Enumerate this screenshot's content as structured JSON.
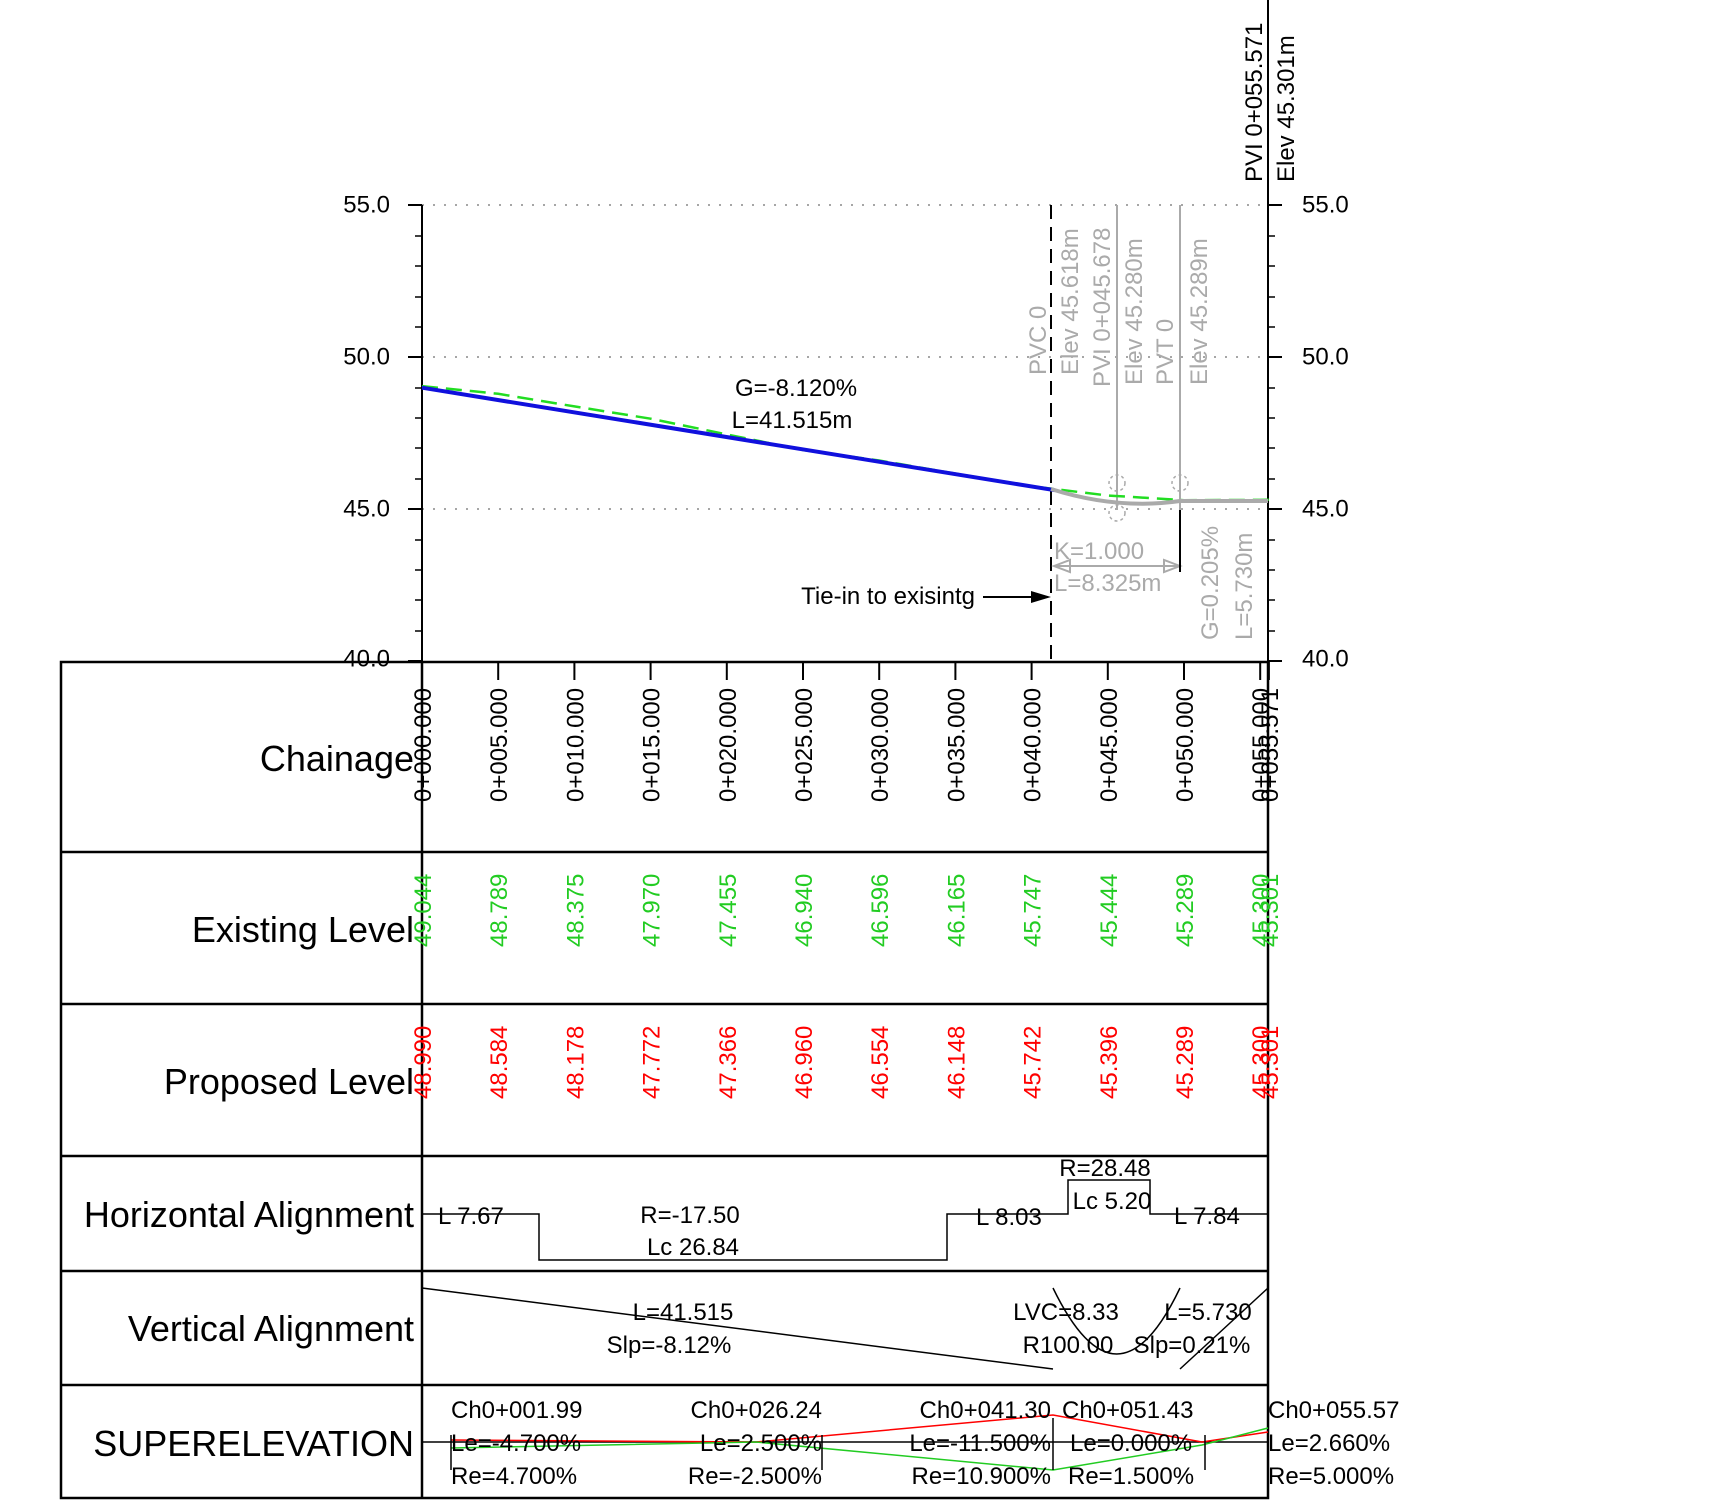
{
  "profile": {
    "y_axis": {
      "ticks": [
        "55.0",
        "50.0",
        "45.0",
        "40.0"
      ]
    },
    "top_label": [
      "PVI 0+055.571",
      "Elev 45.301m"
    ],
    "grade_label": [
      "G=-8.120%",
      "L=41.515m"
    ],
    "curve_labels": [
      "PVC 0",
      "Elev 45.618m",
      "PVI 0+045.678",
      "Elev 45.280m",
      "PVT 0",
      "Elev 45.289m"
    ],
    "k_label": "K=1.000",
    "length_label": "L=8.325m",
    "end_grade": [
      "G=0.205%",
      "L=5.730m"
    ],
    "tie_in_label": "Tie-in to exisintg",
    "colors": {
      "proposed": "#1010dd",
      "existing": "#22dd22",
      "curve": "#aaaaaa",
      "red": "#ff0000"
    }
  },
  "chart_data": {
    "type": "line",
    "xlabel": "Chainage",
    "ylim": [
      40,
      55
    ],
    "series": [
      {
        "name": "Existing Level",
        "x": [
          "0+000.000",
          "0+005.000",
          "0+010.000",
          "0+015.000",
          "0+020.000",
          "0+025.000",
          "0+030.000",
          "0+035.000",
          "0+040.000",
          "0+045.000",
          "0+050.000",
          "0+055.000",
          "0+055.571"
        ],
        "values": [
          49.044,
          48.789,
          48.375,
          47.97,
          47.455,
          46.94,
          46.596,
          46.165,
          45.747,
          45.444,
          45.289,
          45.3,
          45.301
        ]
      },
      {
        "name": "Proposed Level",
        "x": [
          "0+000.000",
          "0+005.000",
          "0+010.000",
          "0+015.000",
          "0+020.000",
          "0+025.000",
          "0+030.000",
          "0+035.000",
          "0+040.000",
          "0+045.000",
          "0+050.000",
          "0+055.000",
          "0+055.571"
        ],
        "values": [
          48.99,
          48.584,
          48.178,
          47.772,
          47.366,
          46.96,
          46.554,
          46.148,
          45.742,
          45.396,
          45.289,
          45.3,
          45.301
        ]
      }
    ]
  },
  "table": {
    "rows": [
      "Chainage",
      "Existing Level",
      "Proposed Level",
      "Horizontal Alignment",
      "Vertical Alignment",
      "SUPERELEVATION"
    ],
    "chainage": [
      "0+000.000",
      "0+005.000",
      "0+010.000",
      "0+015.000",
      "0+020.000",
      "0+025.000",
      "0+030.000",
      "0+035.000",
      "0+040.000",
      "0+045.000",
      "0+050.000",
      "0+055.000",
      "0+055.571"
    ],
    "existing": [
      "49.044",
      "48.789",
      "48.375",
      "47.970",
      "47.455",
      "46.940",
      "46.596",
      "46.165",
      "45.747",
      "45.444",
      "45.289",
      "45.300",
      "45.301"
    ],
    "proposed": [
      "48.990",
      "48.584",
      "48.178",
      "47.772",
      "47.366",
      "46.960",
      "46.554",
      "46.148",
      "45.742",
      "45.396",
      "45.289",
      "45.300",
      "45.301"
    ],
    "horizontal": {
      "seg1": "L 7.67",
      "curve1_r": "R=-17.50",
      "curve1_lc": "Lc 26.84",
      "seg2": "L 8.03",
      "curve2_r": "R=28.48",
      "curve2_lc": "Lc 5.20",
      "seg3": "L 7.84"
    },
    "vertical": {
      "grade_l": "L=41.515",
      "grade_slp": "Slp=-8.12%",
      "lvc": "LVC=8.33",
      "r": "R100.00",
      "grade2_l": "L=5.730",
      "grade2_slp": "Slp=0.21%"
    },
    "superelevation": [
      {
        "ch": "Ch0+001.99",
        "le": "Le=-4.700%",
        "re": "Re=4.700%"
      },
      {
        "ch": "Ch0+026.24",
        "le": "Le=2.500%",
        "re": "Re=-2.500%"
      },
      {
        "ch": "Ch0+041.30",
        "le": "Le=-11.500%",
        "re": "Re=10.900%"
      },
      {
        "ch": "Ch0+051.43",
        "le": "Le=0.000%",
        "re": "Re=1.500%"
      },
      {
        "ch": "Ch0+055.57",
        "le": "Le=2.660%",
        "re": "Re=5.000%"
      }
    ]
  }
}
